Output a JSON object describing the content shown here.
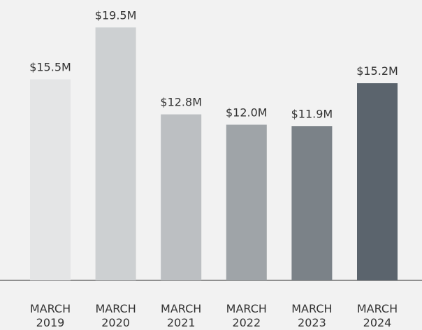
{
  "chart_data": {
    "type": "bar",
    "categories": [
      "MARCH 2019",
      "MARCH 2020",
      "MARCH 2021",
      "MARCH 2022",
      "MARCH 2023",
      "MARCH 2024"
    ],
    "values": [
      15.5,
      19.5,
      12.8,
      12.0,
      11.9,
      15.2
    ],
    "value_labels": [
      "$15.5M",
      "$19.5M",
      "$12.8M",
      "$12.0M",
      "$11.9M",
      "$15.2M"
    ],
    "colors": [
      "#e4e5e6",
      "#cdd0d2",
      "#bcbfc2",
      "#9fa4a8",
      "#7b8288",
      "#5b646d"
    ]
  }
}
